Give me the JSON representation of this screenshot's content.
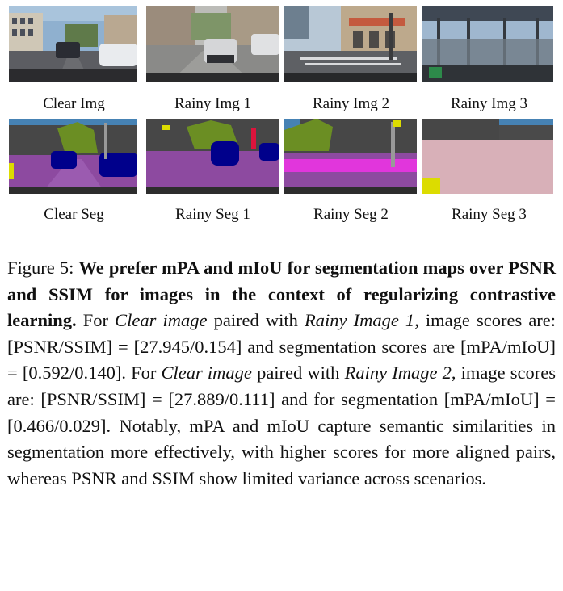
{
  "panels": {
    "row1": [
      "Clear Img",
      "Rainy Img 1",
      "Rainy Img 2",
      "Rainy Img 3"
    ],
    "row2": [
      "Clear Seg",
      "Rainy Seg 1",
      "Rainy Seg 2",
      "Rainy Seg 3"
    ]
  },
  "caption": {
    "label": "Figure 5:",
    "bold": "We prefer mPA and mIoU for segmentation maps over PSNR and SSIM for images in the context of regularizing contrastive learning.",
    "t1": "For",
    "clear_a": "Clear image",
    "t2": "paired with",
    "rainy_a": "Rainy Image 1",
    "t3": ", image scores are: [PSNR/SSIM] = [27.945/0.154] and segmentation scores are [mPA/mIoU] = [0.592/0.140]. For",
    "clear_b": "Clear image",
    "t4": "paired with",
    "rainy_b": "Rainy Image 2",
    "t5": ", image scores are: [PSNR/SSIM] = [27.889/0.111] and for segmentation [mPA/mIoU] = [0.466/0.029]. Notably, mPA and mIoU capture semantic similarities in segmentation more effectively, with higher scores for more aligned pairs, whereas PSNR and SSIM show limited variance across scenarios."
  }
}
